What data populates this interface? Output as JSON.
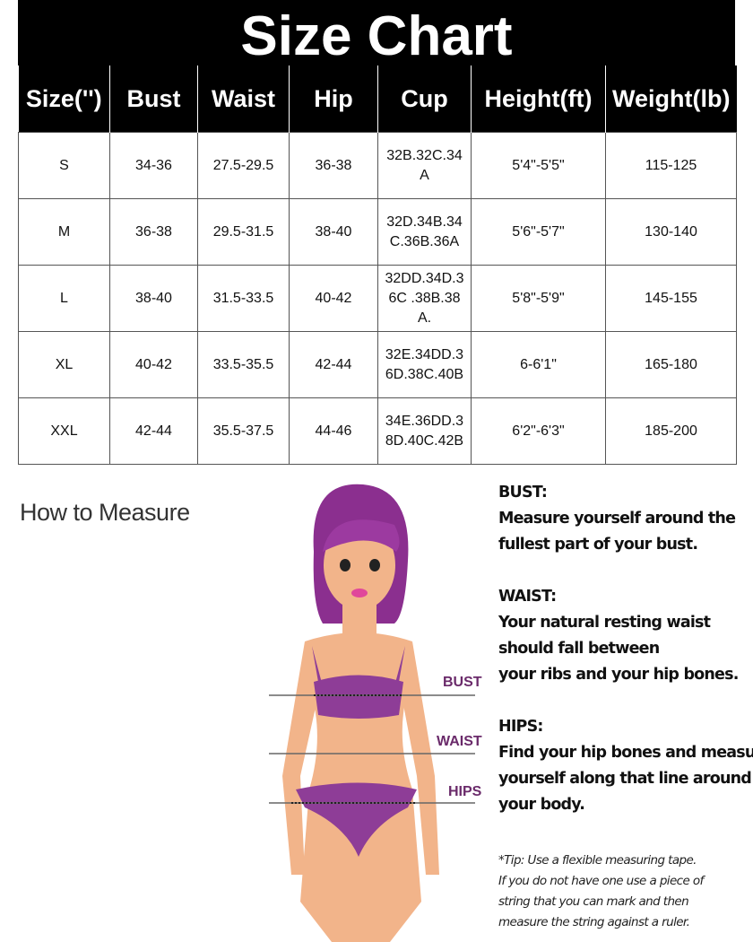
{
  "title": "Size Chart",
  "table": {
    "headers": [
      "Size('')",
      "Bust",
      "Waist",
      "Hip",
      "Cup",
      "Height(ft)",
      "Weight(lb)"
    ],
    "rows": [
      [
        "S",
        "34-36",
        "27.5-29.5",
        "36-38",
        "32B.32C.34A",
        "5'4\"-5'5\"",
        "115-125"
      ],
      [
        "M",
        "36-38",
        "29.5-31.5",
        "38-40",
        "32D.34B.34C.36B.36A",
        "5'6\"-5'7\"",
        "130-140"
      ],
      [
        "L",
        "38-40",
        "31.5-33.5",
        "40-42",
        "32DD.34D.36C .38B.38A.",
        "5'8\"-5'9\"",
        "145-155"
      ],
      [
        "XL",
        "40-42",
        "33.5-35.5",
        "42-44",
        "32E.34DD.36D.38C.40B",
        "6-6'1\"",
        "165-180"
      ],
      [
        "XXL",
        "42-44",
        "35.5-37.5",
        "44-46",
        "34E.36DD.38D.40C.42B",
        "6'2\"-6'3\"",
        "185-200"
      ]
    ]
  },
  "how_to": {
    "heading": "How to Measure",
    "figure_labels": {
      "bust": "BUST",
      "waist": "WAIST",
      "hips": "HIPS"
    },
    "sections": [
      {
        "title": "BUST:",
        "lines": [
          "Measure yourself around the",
          "fullest part of your bust."
        ]
      },
      {
        "title": "WAIST:",
        "lines": [
          "Your natural resting waist",
          "should fall between",
          "your ribs and your hip bones."
        ]
      },
      {
        "title": "HIPS:",
        "lines": [
          "Find your hip bones and measure",
          "yourself along that line around",
          "your body."
        ]
      }
    ],
    "tip": [
      "*Tip: Use a flexible measuring tape.",
      "If you do not have one use a piece of",
      "string that you can mark and then",
      "measure the string against a ruler."
    ]
  },
  "colors": {
    "header": "#000000",
    "hair": "#8b2f8f",
    "lingerie": "#8e3d97",
    "skin": "#f2b48a"
  }
}
